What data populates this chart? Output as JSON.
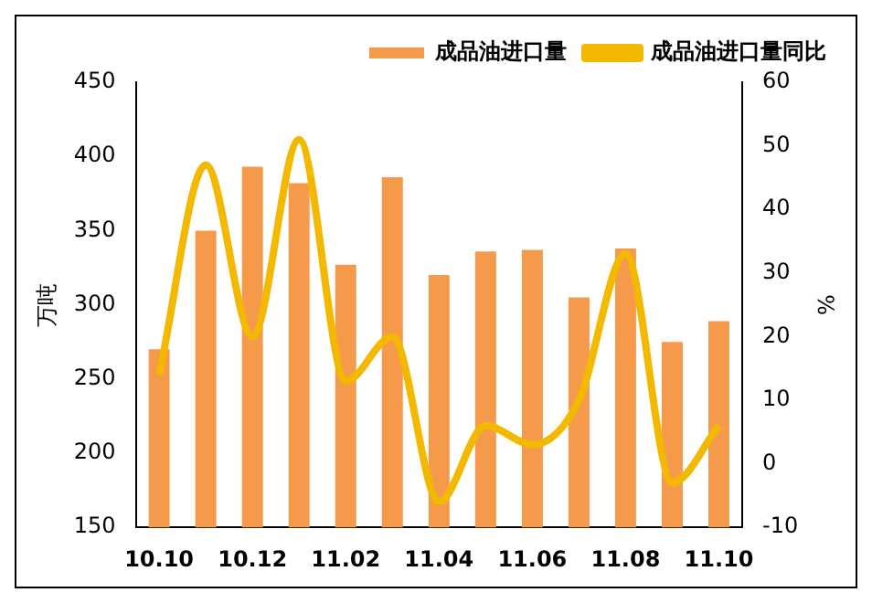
{
  "chart_data": {
    "type": "bar",
    "ylabel": "万吨",
    "y2label": "%",
    "categories": [
      "10.10",
      null,
      "10.12",
      null,
      "11.02",
      null,
      "11.04",
      null,
      "11.06",
      null,
      "11.08",
      null,
      "11.10"
    ],
    "series": [
      {
        "name": "成品油进口量",
        "color": "#f59a4b",
        "values": [
          270,
          350,
          393,
          382,
          327,
          386,
          320,
          336,
          337,
          305,
          338,
          275,
          289
        ]
      },
      {
        "name": "成品油进口量同比",
        "type": "line",
        "axis": "y2",
        "color": "#f2b900",
        "values": [
          14,
          47,
          20,
          51,
          13,
          20,
          -6,
          6,
          3,
          10,
          33,
          -3,
          6
        ]
      }
    ],
    "ylim": [
      150,
      450
    ],
    "yticks": [
      150,
      200,
      250,
      300,
      350,
      400,
      450
    ],
    "y2lim": [
      -10,
      60
    ],
    "y2ticks": [
      -10,
      0,
      10,
      20,
      30,
      40,
      50,
      60
    ],
    "grid": false,
    "legend": "top right",
    "marker": "none"
  }
}
